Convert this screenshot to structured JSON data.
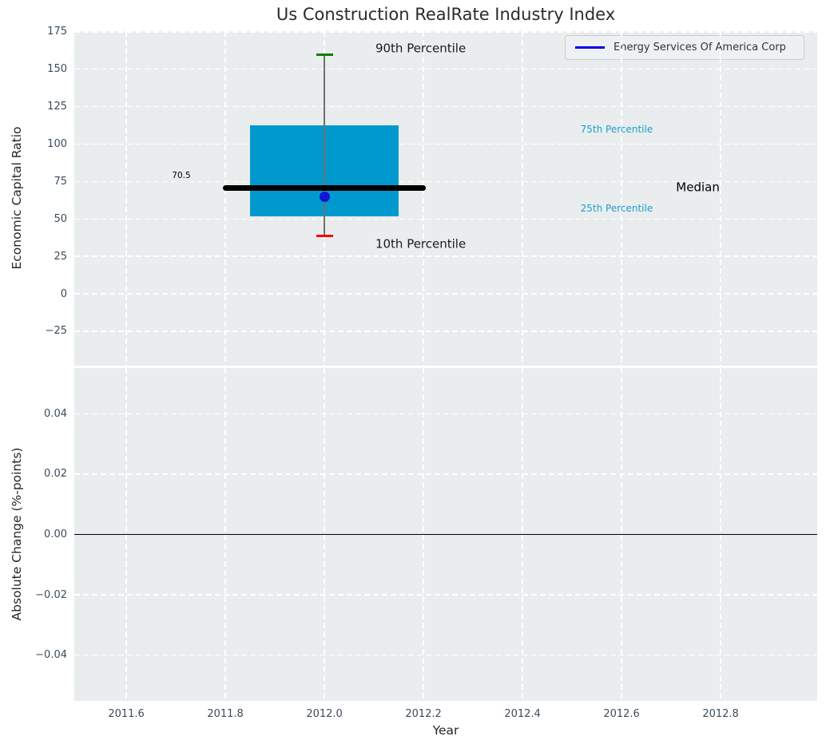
{
  "colors": {
    "axes_bg": "#E9EDEE",
    "grid": "#FFFFFF",
    "box_fill": "#0099CE",
    "whisker": "#707070",
    "cap_90th": "#008000",
    "cap_10th": "#FF0000",
    "median_line": "#000000",
    "company_point": "#1414D6",
    "legend_line": "#0000EE",
    "percentile_label": "#1E9ECE",
    "tick_label": "#3C4B5D",
    "text": "#262626"
  },
  "chart_data": {
    "type": "boxplot",
    "title": "Us Construction RealRate Industry Index",
    "xlabel": "Year",
    "legend": {
      "label": "Energy Services Of America Corp",
      "position": "upper right"
    },
    "xlim": [
      2011.495,
      2012.995
    ],
    "xticks": [
      2011.6,
      2011.8,
      2012.0,
      2012.2,
      2012.4,
      2012.6,
      2012.8
    ],
    "xtick_labels": [
      "2011.6",
      "2011.8",
      "2012.0",
      "2012.2",
      "2012.4",
      "2012.6",
      "2012.8"
    ],
    "grid": {
      "on": true,
      "style": "dashed",
      "color": "#FFFFFF"
    },
    "top": {
      "ylabel": "Economic Capital Ratio",
      "ylim": [
        -48,
        175.5
      ],
      "yticks": [
        175,
        150,
        125,
        100,
        75,
        50,
        25,
        0,
        -25
      ],
      "ytick_labels": [
        "175",
        "150",
        "125",
        "100",
        "75",
        "50",
        "25",
        "0",
        "−25"
      ],
      "box": {
        "x": 2012.0,
        "p10": 38.5,
        "p25": 52,
        "median": 70.5,
        "p75": 112.5,
        "p90": 159.5,
        "box_halfwidth": 0.15,
        "median_halfwidth": 0.205,
        "cap_halfwidth": 0.017
      },
      "median_value_label": "70.5",
      "company_point": {
        "name": "Energy Services Of America Corp",
        "x": 2012.0,
        "y": 65
      },
      "annotations": [
        {
          "label": "90th Percentile",
          "x": 2012.103,
          "y": 164,
          "color": "#1a1a1a",
          "fontsize": 15,
          "ha": "left"
        },
        {
          "label": "10th Percentile",
          "x": 2012.103,
          "y": 33,
          "color": "#1a1a1a",
          "fontsize": 15,
          "ha": "left"
        },
        {
          "label": "75th Percentile",
          "x": 2012.517,
          "y": 110,
          "color": "#1E9ECE",
          "fontsize": 12,
          "ha": "left"
        },
        {
          "label": "25th Percentile",
          "x": 2012.517,
          "y": 57,
          "color": "#1E9ECE",
          "fontsize": 12,
          "ha": "left"
        },
        {
          "label": "Median",
          "x": 2012.71,
          "y": 70.8,
          "color": "#000000",
          "fontsize": 15,
          "ha": "left"
        },
        {
          "label": "70.5",
          "x": 2011.73,
          "y": 79,
          "color": "#000000",
          "fontsize": 10.5,
          "ha": "right"
        }
      ]
    },
    "bottom": {
      "ylabel": "Absolute Change (%-points)",
      "ylim": [
        -0.0552,
        0.0552
      ],
      "yticks": [
        0.04,
        0.02,
        0.0,
        -0.02,
        -0.04
      ],
      "ytick_labels": [
        "0.04",
        "0.02",
        "0.00",
        "−0.02",
        "−0.04"
      ],
      "zero_line_y": 0.0
    }
  }
}
